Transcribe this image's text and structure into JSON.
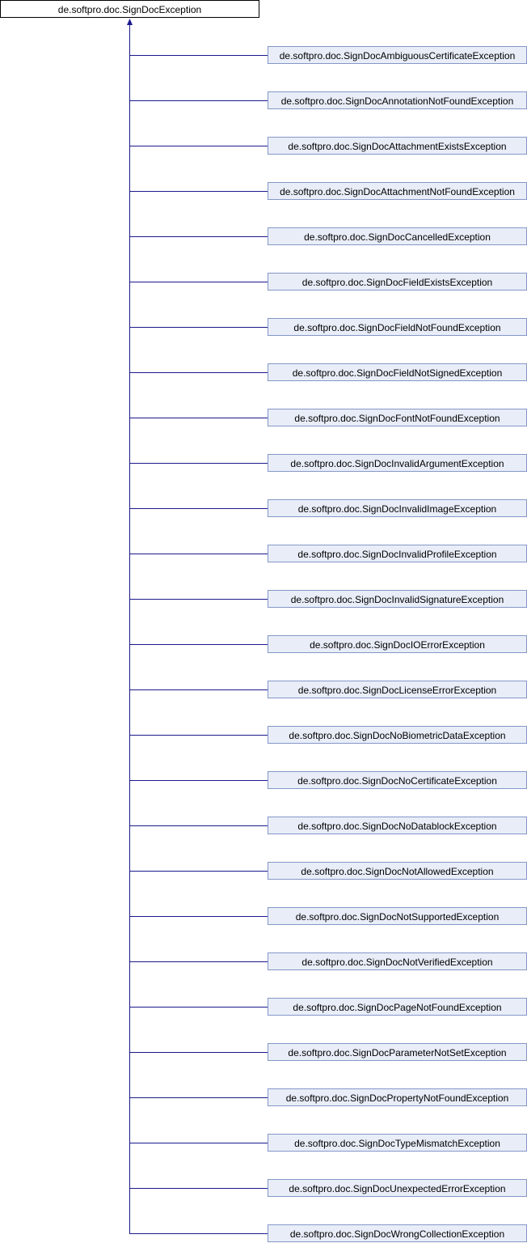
{
  "base_class": "de.softpro.doc.SignDocException",
  "colors": {
    "edge": "#1a1a8c",
    "child_fill": "#e8edf8",
    "child_border": "#8497c7"
  },
  "derived_classes": [
    "de.softpro.doc.SignDocAmbiguousCertificateException",
    "de.softpro.doc.SignDocAnnotationNotFoundException",
    "de.softpro.doc.SignDocAttachmentExistsException",
    "de.softpro.doc.SignDocAttachmentNotFoundException",
    "de.softpro.doc.SignDocCancelledException",
    "de.softpro.doc.SignDocFieldExistsException",
    "de.softpro.doc.SignDocFieldNotFoundException",
    "de.softpro.doc.SignDocFieldNotSignedException",
    "de.softpro.doc.SignDocFontNotFoundException",
    "de.softpro.doc.SignDocInvalidArgumentException",
    "de.softpro.doc.SignDocInvalidImageException",
    "de.softpro.doc.SignDocInvalidProfileException",
    "de.softpro.doc.SignDocInvalidSignatureException",
    "de.softpro.doc.SignDocIOErrorException",
    "de.softpro.doc.SignDocLicenseErrorException",
    "de.softpro.doc.SignDocNoBiometricDataException",
    "de.softpro.doc.SignDocNoCertificateException",
    "de.softpro.doc.SignDocNoDatablockException",
    "de.softpro.doc.SignDocNotAllowedException",
    "de.softpro.doc.SignDocNotSupportedException",
    "de.softpro.doc.SignDocNotVerifiedException",
    "de.softpro.doc.SignDocPageNotFoundException",
    "de.softpro.doc.SignDocParameterNotSetException",
    "de.softpro.doc.SignDocPropertyNotFoundException",
    "de.softpro.doc.SignDocTypeMismatchException",
    "de.softpro.doc.SignDocUnexpectedErrorException",
    "de.softpro.doc.SignDocWrongCollectionException"
  ]
}
